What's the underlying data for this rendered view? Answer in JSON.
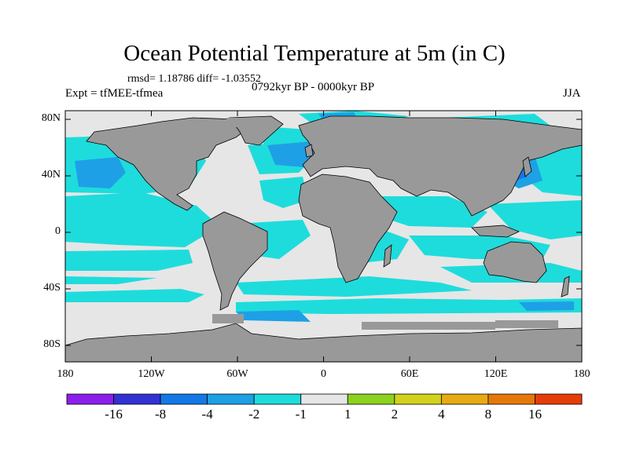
{
  "title": "Ocean Potential Temperature at 5m (in C)",
  "stats": "rmsd= 1.18786 diff= -1.03552",
  "experiment": "Expt = tfMEE-tfmea",
  "period": "0792kyr BP - 0000kyr BP",
  "season": "JJA",
  "y_axis": {
    "ticks": [
      {
        "label": "80N",
        "lat": 80
      },
      {
        "label": "40N",
        "lat": 40
      },
      {
        "label": "0",
        "lat": 0
      },
      {
        "label": "40S",
        "lat": -40
      },
      {
        "label": "80S",
        "lat": -80
      }
    ]
  },
  "x_axis": {
    "ticks": [
      {
        "label": "180",
        "lon": -180
      },
      {
        "label": "120W",
        "lon": -120
      },
      {
        "label": "60W",
        "lon": -60
      },
      {
        "label": "0",
        "lon": 0
      },
      {
        "label": "60E",
        "lon": 60
      },
      {
        "label": "120E",
        "lon": 120
      },
      {
        "label": "180",
        "lon": 180
      }
    ]
  },
  "colorbar": {
    "colors": [
      "#8c1eeb",
      "#3232d2",
      "#1478e6",
      "#1ea0e6",
      "#1edcdc",
      "#e6e6e6",
      "#8cd21e",
      "#d2d21e",
      "#e6aa14",
      "#e6780a",
      "#e63c0a"
    ],
    "labels": [
      "-16",
      "-8",
      "-4",
      "-2",
      "-1",
      "1",
      "2",
      "4",
      "8",
      "16"
    ]
  },
  "palette": {
    "land": "#999999",
    "neutral": "#e6e6e6",
    "cool": "#1edcdc",
    "cold": "#1ea0e6",
    "colder": "#1478e6",
    "warm": "#d2d21e"
  }
}
